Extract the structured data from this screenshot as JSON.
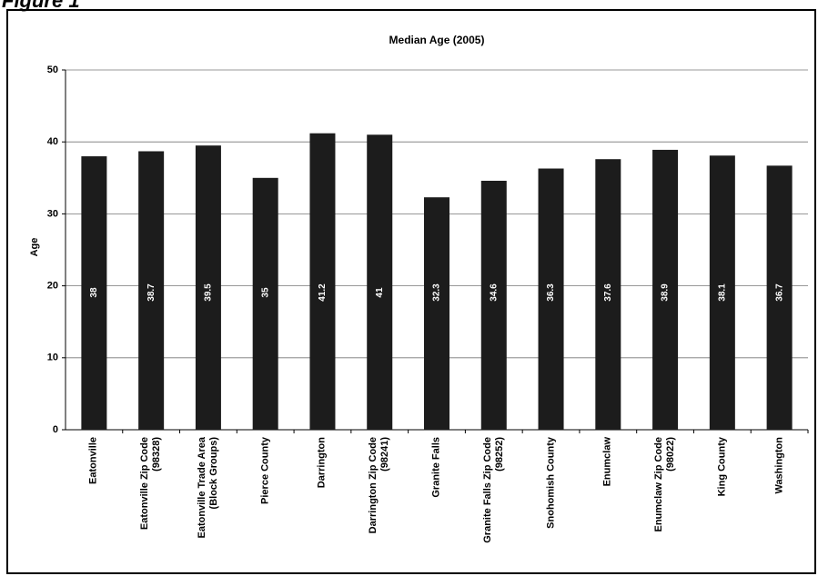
{
  "figure_label": "Figure 1",
  "chart_data": {
    "type": "bar",
    "title": "Median Age (2005)",
    "y_label": "Age",
    "categories": [
      "Eatonville",
      "Eatonville Zip Code (98328)",
      "Eatonville Trade Area (Block Groups)",
      "Pierce County",
      "Darrington",
      "Darrington Zip Code (98241)",
      "Granite Falls",
      "Granite Falls Zip Code (98252)",
      "Snohomish County",
      "Enumclaw",
      "Enumclaw Zip Code (98022)",
      "King County",
      "Washington"
    ],
    "values": [
      38,
      38.7,
      39.5,
      35,
      41.2,
      41,
      32.3,
      34.6,
      36.3,
      37.6,
      38.9,
      38.1,
      36.7
    ],
    "color": "#1c1c1c",
    "ylim": [
      0,
      50
    ],
    "yticks": [
      0,
      10,
      20,
      30,
      40,
      50
    ],
    "grid": true
  }
}
